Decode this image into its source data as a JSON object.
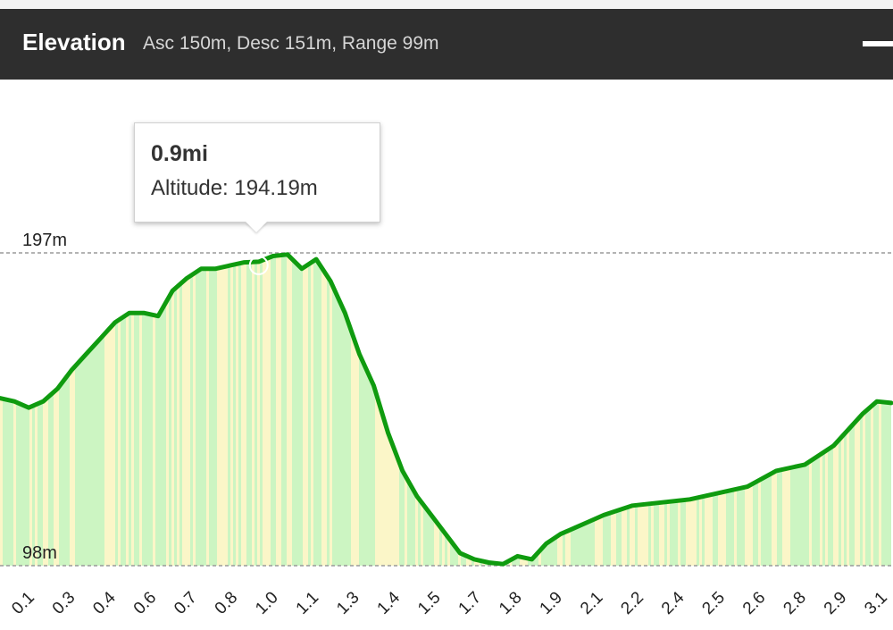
{
  "header": {
    "title": "Elevation",
    "stats": "Asc 150m, Desc 151m, Range 99m"
  },
  "tooltip": {
    "distance": "0.9mi",
    "altitude_label": "Altitude:",
    "altitude_value": "194.19m"
  },
  "colors": {
    "header_bg": "#2e2e2e",
    "line": "#0f9b0f",
    "fill_green": "#ccf5c2",
    "fill_yellow": "#fbf6c8",
    "reference_line": "#9a9a9a"
  },
  "chart_data": {
    "type": "area",
    "x_unit": "mi",
    "y_unit": "m",
    "reference_lines": [
      {
        "label": "197m",
        "value": 197
      },
      {
        "label": "98m",
        "value": 98
      }
    ],
    "x_ticks": [
      "0.1",
      "0.3",
      "0.4",
      "0.6",
      "0.7",
      "0.8",
      "1.0",
      "1.1",
      "1.3",
      "1.4",
      "1.5",
      "1.7",
      "1.8",
      "1.9",
      "2.1",
      "2.2",
      "2.4",
      "2.5",
      "2.6",
      "2.8",
      "2.9",
      "3.1"
    ],
    "x": [
      0.0,
      0.05,
      0.1,
      0.15,
      0.2,
      0.25,
      0.3,
      0.35,
      0.4,
      0.45,
      0.5,
      0.55,
      0.6,
      0.65,
      0.7,
      0.75,
      0.8,
      0.85,
      0.9,
      0.95,
      1.0,
      1.05,
      1.1,
      1.15,
      1.2,
      1.25,
      1.3,
      1.35,
      1.4,
      1.45,
      1.5,
      1.55,
      1.6,
      1.65,
      1.7,
      1.75,
      1.8,
      1.85,
      1.9,
      1.95,
      2.0,
      2.05,
      2.1,
      2.2,
      2.3,
      2.4,
      2.5,
      2.6,
      2.7,
      2.8,
      2.9,
      3.0,
      3.05,
      3.1
    ],
    "altitude": [
      151,
      150,
      148,
      150,
      154,
      160,
      165,
      170,
      175,
      178,
      178,
      177,
      185,
      189,
      192,
      192,
      193,
      194,
      194.19,
      196,
      196.5,
      192,
      195,
      188,
      178,
      165,
      155,
      140,
      128,
      120,
      114,
      108,
      102,
      100,
      99,
      98.5,
      101,
      100,
      105,
      108,
      110,
      112,
      114,
      117,
      118,
      119,
      121,
      123,
      128,
      130,
      136,
      146,
      150,
      149.5
    ]
  }
}
